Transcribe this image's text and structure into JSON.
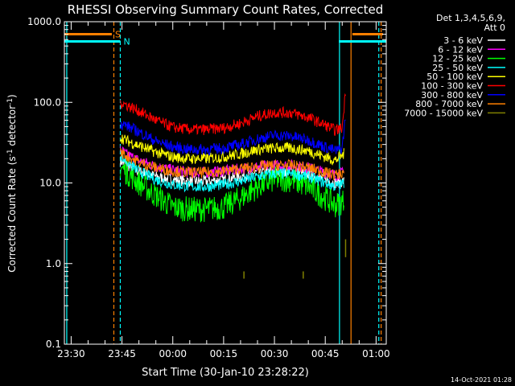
{
  "chart_data": {
    "type": "line",
    "title": "RHESSI Observing Summary Count Rates, Corrected",
    "xlabel": "Start Time (30-Jan-10 23:28:22)",
    "ylabel_main": "Corrected Count Rate (s",
    "ylabel_sup1": "-1",
    "ylabel_mid": " detector",
    "ylabel_sup2": "-1",
    "ylabel_end": ")",
    "ylog": true,
    "ylim": [
      0.1,
      1000
    ],
    "xlim_minutes": [
      -2,
      93
    ],
    "y_ticks": [
      {
        "value": 0.1,
        "label": "0.1"
      },
      {
        "value": 1,
        "label": "1.0"
      },
      {
        "value": 10,
        "label": "10.0"
      },
      {
        "value": 100,
        "label": "100.0"
      },
      {
        "value": 1000,
        "label": "1000.0"
      }
    ],
    "x_ticks": [
      {
        "minute": 0,
        "label": "23:30"
      },
      {
        "minute": 15,
        "label": "23:45"
      },
      {
        "minute": 30,
        "label": "00:00"
      },
      {
        "minute": 45,
        "label": "00:15"
      },
      {
        "minute": 60,
        "label": "00:30"
      },
      {
        "minute": 75,
        "label": "00:45"
      },
      {
        "minute": 90,
        "label": "01:00"
      }
    ],
    "legend_header": "Det 1,3,4,5,6,9,",
    "legend_header2": "Att 0",
    "series": [
      {
        "name": "3 - 6 keV",
        "color": "#ffffff",
        "x": [
          14.5,
          16,
          20,
          25,
          30,
          35,
          40,
          45,
          50,
          55,
          60,
          65,
          70,
          75,
          78,
          80.5
        ],
        "y": [
          19,
          17,
          14,
          12,
          11,
          10.5,
          10.5,
          11,
          12,
          13.5,
          14,
          14,
          13,
          11,
          10,
          10.5
        ]
      },
      {
        "name": "6 - 12 keV",
        "color": "#ff00ff",
        "x": [
          14.5,
          16,
          20,
          25,
          30,
          35,
          40,
          45,
          50,
          55,
          60,
          65,
          70,
          75,
          78,
          80.5
        ],
        "y": [
          26,
          23,
          19,
          16,
          14.5,
          13.5,
          13.5,
          14,
          15,
          16,
          16.5,
          16.5,
          15.5,
          13.5,
          12.5,
          13.5
        ]
      },
      {
        "name": "12 - 25 keV",
        "color": "#00ff00",
        "x": [
          14.5,
          16,
          20,
          25,
          30,
          35,
          40,
          45,
          50,
          55,
          60,
          65,
          70,
          75,
          78,
          80.5
        ],
        "y": [
          16,
          14,
          10,
          7,
          5,
          4.7,
          4.7,
          5,
          6.5,
          9,
          11,
          11,
          9,
          6.5,
          5.3,
          6
        ]
      },
      {
        "name": "25 - 50 keV",
        "color": "#00ffff",
        "x": [
          14.5,
          16,
          20,
          25,
          30,
          35,
          40,
          45,
          50,
          55,
          60,
          65,
          70,
          75,
          78,
          80.5
        ],
        "y": [
          22,
          19,
          14,
          11,
          9.5,
          9,
          9,
          9.5,
          10.5,
          12,
          13,
          13,
          12,
          10,
          9,
          10
        ]
      },
      {
        "name": "50 - 100 keV",
        "color": "#ffff00",
        "x": [
          14.5,
          16,
          20,
          25,
          30,
          35,
          40,
          45,
          50,
          55,
          60,
          65,
          70,
          75,
          78,
          80.5
        ],
        "y": [
          37,
          34,
          29,
          24,
          21,
          20,
          20,
          21,
          23,
          26,
          27,
          27,
          25,
          21,
          19,
          23
        ]
      },
      {
        "name": "100 - 300 keV",
        "color": "#ff0000",
        "x": [
          14.5,
          16,
          20,
          25,
          30,
          35,
          40,
          45,
          50,
          55,
          60,
          65,
          70,
          75,
          78,
          80,
          81
        ],
        "y": [
          100,
          94,
          78,
          60,
          49,
          46,
          46,
          48,
          55,
          67,
          75,
          74,
          65,
          52,
          45,
          48,
          140
        ]
      },
      {
        "name": "300 - 800 keV",
        "color": "#0000ff",
        "x": [
          14.5,
          16,
          20,
          25,
          30,
          35,
          40,
          45,
          50,
          55,
          60,
          65,
          70,
          75,
          78,
          80,
          81
        ],
        "y": [
          55,
          52,
          43,
          33,
          28,
          26,
          26,
          27,
          30,
          35,
          39,
          38,
          34,
          28,
          25,
          27,
          70
        ]
      },
      {
        "name": "800 - 7000 keV",
        "color": "#ff8000",
        "x": [
          14.5,
          16,
          20,
          25,
          30,
          35,
          40,
          45,
          50,
          55,
          60,
          65,
          70,
          75,
          78,
          80.5
        ],
        "y": [
          24,
          22,
          18,
          15.5,
          14,
          13.5,
          13.5,
          14,
          15,
          16,
          16.5,
          16.5,
          15.5,
          13.5,
          12.5,
          13.5
        ]
      },
      {
        "name": "7000 - 15000 keV",
        "color": "#808000",
        "x": [
          51,
          51,
          68.5,
          68.5,
          81,
          81
        ],
        "y": [
          0.65,
          0.8,
          0.65,
          0.8,
          1.2,
          2
        ]
      }
    ],
    "flags": [
      {
        "label": "S",
        "color": "#ff8000",
        "y": 700,
        "segments": [
          [
            -2,
            12
          ],
          [
            83,
            92
          ]
        ]
      },
      {
        "label": "N",
        "color": "#00ffff",
        "y": 570,
        "segments": [
          [
            -2,
            14.5
          ],
          [
            79,
            93
          ]
        ]
      }
    ],
    "vlines": [
      {
        "minute": -1.3,
        "color": "#00ffff",
        "dashed": false
      },
      {
        "minute": 12.6,
        "color": "#ff8000",
        "dashed": true
      },
      {
        "minute": 14.5,
        "color": "#00ffff",
        "dashed": true
      },
      {
        "minute": 79.2,
        "color": "#00ffff",
        "dashed": false
      },
      {
        "minute": 82.6,
        "color": "#ff8000",
        "dashed": false
      },
      {
        "minute": 90.8,
        "color": "#00ffff",
        "dashed": true
      },
      {
        "minute": 91.5,
        "color": "#ff8000",
        "dashed": true
      }
    ],
    "timestamp": "14-Oct-2021 01:28"
  }
}
